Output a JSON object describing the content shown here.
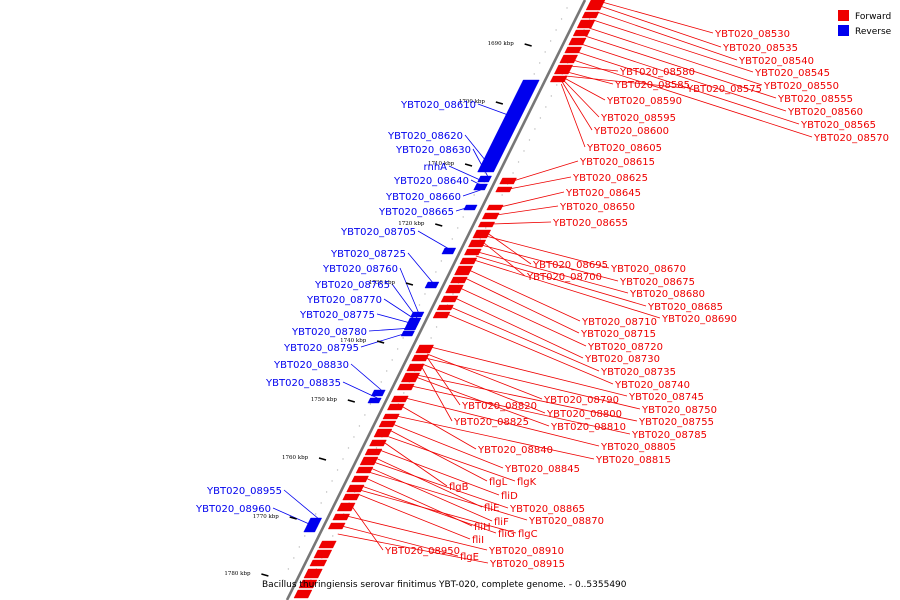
{
  "caption": "Bacillus thuringiensis serovar finitimus YBT-020, complete genome. - 0..5355490",
  "legend": [
    {
      "label": "Forward",
      "color": "#ee0000"
    },
    {
      "label": "Reverse",
      "color": "#0000ee"
    }
  ],
  "colors": {
    "forward": "#ee0000",
    "reverse": "#0000ee",
    "backbone": "#777777"
  },
  "ticks": [
    "1690 kbp",
    "1700 kbp",
    "1710 kbp",
    "1720 kbp",
    "1730 kbp",
    "1740 kbp",
    "1750 kbp",
    "1760 kbp",
    "1770 kbp",
    "1780 kbp"
  ],
  "reverse_labels": [
    "YBT020_08610",
    "YBT020_08620",
    "YBT020_08630",
    "rnhA",
    "YBT020_08640",
    "YBT020_08660",
    "YBT020_08665",
    "YBT020_08705",
    "YBT020_08725",
    "YBT020_08760",
    "YBT020_08765",
    "YBT020_08770",
    "YBT020_08775",
    "YBT020_08780",
    "YBT020_08795",
    "YBT020_08830",
    "YBT020_08835",
    "YBT020_08955",
    "YBT020_08960"
  ],
  "top_labels": [
    "YBT020_08530",
    "YBT020_08535",
    "YBT020_08540",
    "YBT020_08545",
    "YBT020_08550",
    "YBT020_08555",
    "YBT020_08560",
    "YBT020_08565",
    "YBT020_08570",
    "YBT020_08580",
    "YBT020_08585",
    "YBT020_08575",
    "YBT020_08590",
    "YBT020_08595",
    "YBT020_08600",
    "YBT020_08605"
  ],
  "forward_labels": [
    "YBT020_08615",
    "YBT020_08625",
    "YBT020_08645",
    "YBT020_08650",
    "YBT020_08655",
    "YBT020_08695",
    "YBT020_08670",
    "YBT020_08700",
    "YBT020_08675",
    "YBT020_08680",
    "YBT020_08685",
    "YBT020_08690",
    "YBT020_08710",
    "YBT020_08715",
    "YBT020_08720",
    "YBT020_08730",
    "YBT020_08735",
    "YBT020_08740",
    "YBT020_08745",
    "YBT020_08790",
    "YBT020_08820",
    "YBT020_08750",
    "YBT020_08800",
    "YBT020_08825",
    "YBT020_08755",
    "YBT020_08810",
    "YBT020_08785",
    "YBT020_08805",
    "YBT020_08840",
    "YBT020_08815",
    "YBT020_08845",
    "flgL",
    "flgK",
    "flgB",
    "fliD",
    "fliE",
    "YBT020_08865",
    "fliF",
    "YBT020_08870",
    "fliH",
    "fliG",
    "flgC",
    "fliI",
    "YBT020_08950",
    "YBT020_08910",
    "flgE",
    "YBT020_08915"
  ]
}
